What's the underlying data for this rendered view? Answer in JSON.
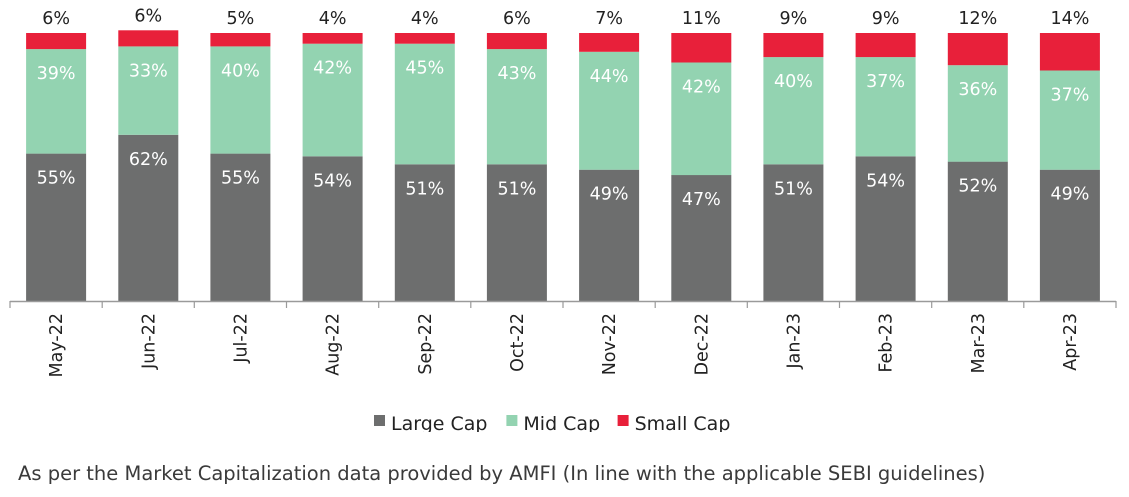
{
  "chart_data": {
    "type": "bar",
    "stacked": true,
    "percent_stacked": true,
    "categories": [
      "May-22",
      "Jun-22",
      "Jul-22",
      "Aug-22",
      "Sep-22",
      "Oct-22",
      "Nov-22",
      "Dec-22",
      "Jan-23",
      "Feb-23",
      "Mar-23",
      "Apr-23"
    ],
    "series": [
      {
        "name": "Large Cap",
        "color": "#6d6e6e",
        "values": [
          55,
          62,
          55,
          54,
          51,
          51,
          49,
          47,
          51,
          54,
          52,
          49
        ]
      },
      {
        "name": "Mid Cap",
        "color": "#93d3b1",
        "values": [
          39,
          33,
          40,
          42,
          45,
          43,
          44,
          42,
          40,
          37,
          36,
          37
        ]
      },
      {
        "name": "Small Cap",
        "color": "#e8203a",
        "values": [
          6,
          6,
          5,
          4,
          4,
          6,
          7,
          11,
          9,
          9,
          12,
          14
        ]
      }
    ],
    "data_label_suffix": "%",
    "legend_position": "bottom",
    "ylim": [
      0,
      100
    ],
    "grid": false
  },
  "footnote": "As per the Market Capitalization data provided by AMFI (In line with the applicable SEBI guidelines)"
}
